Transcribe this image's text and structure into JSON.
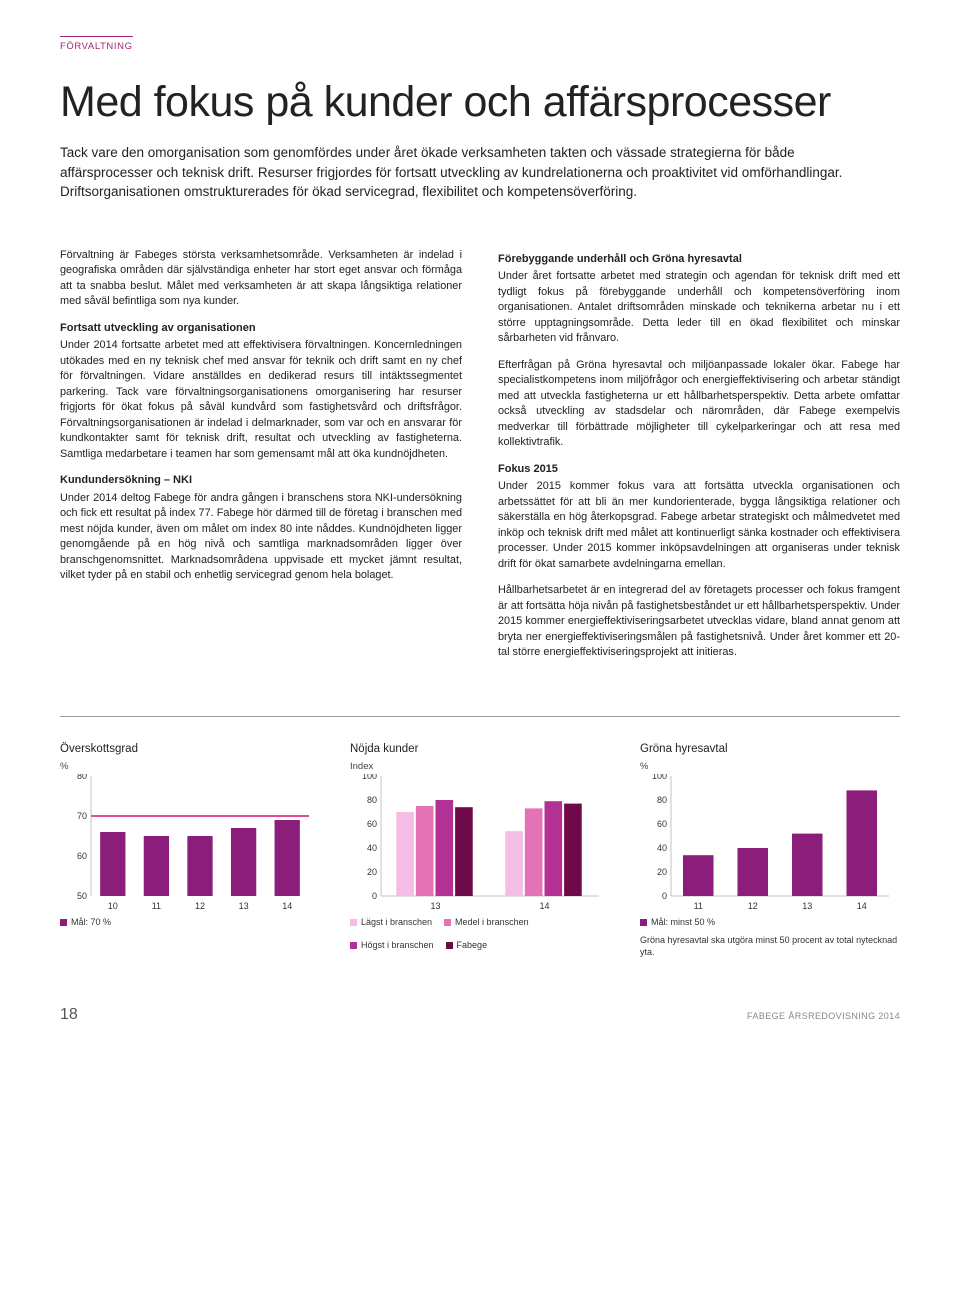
{
  "section_label": "FÖRVALTNING",
  "title": "Med fokus på kunder och affärsprocesser",
  "lead": "Tack vare den omorganisation som genomfördes under året ökade verksamheten takten och vässade strategierna för både affärsprocesser och teknisk drift. Resurser frigjordes för fortsatt utveckling av kundrelationerna och proaktivitet vid omförhandlingar. Driftsorganisationen omstrukturerades för ökad servicegrad, flexibilitet och kompetensöverföring.",
  "left": {
    "p1": "Förvaltning är Fabeges största verksamhetsområde. Verksamheten är indelad i geografiska områden där självständiga enheter har stort eget ansvar och förmåga att ta snabba beslut. Målet med verksamheten är att skapa långsiktiga relationer med såväl befintliga som nya kunder.",
    "h1": "Fortsatt utveckling av organisationen",
    "p2": "Under 2014 fortsatte arbetet med att effektivisera förvaltningen. Koncernledningen utökades med en ny teknisk chef med ansvar för teknik och drift samt en ny chef för förvaltningen. Vidare anställdes en dedikerad resurs till intäktssegmentet parkering. Tack vare förvaltningsorganisationens omorganisering har resurser frigjorts för ökat fokus på såväl kundvård som fastighetsvård och driftsfrågor. Förvaltningsorganisationen är indelad i delmarknader, som var och en ansvarar för kundkontakter samt för teknisk drift, resultat och utveckling av fastigheterna. Samtliga medarbetare i teamen har som gemensamt mål att öka kundnöjdheten.",
    "h2": "Kundundersökning – NKI",
    "p3": "Under 2014 deltog Fabege för andra gången i branschens stora NKI-undersökning och fick ett resultat på index 77. Fabege hör därmed till de företag i branschen med mest nöjda kunder, även om målet om index 80 inte nåddes. Kundnöjdheten ligger genomgående på en hög nivå och samtliga marknadsområden ligger över branschgenomsnittet. Marknadsområdena uppvisade ett mycket jämnt resultat, vilket tyder på en stabil och enhetlig servicegrad genom hela bolaget."
  },
  "right": {
    "h1": "Förebyggande underhåll och Gröna hyresavtal",
    "p1": "Under året fortsatte arbetet med strategin och agendan för teknisk drift med ett tydligt fokus på förebyggande underhåll och kompetensöverföring inom organisationen. Antalet driftsområden minskade och teknikerna arbetar nu i ett större upptagningsområde. Detta leder till en ökad flexibilitet och minskar sårbarheten vid frånvaro.",
    "p2": "Efterfrågan på Gröna hyresavtal och miljöanpassade lokaler ökar. Fabege har specialistkompetens inom miljöfrågor och energieffektivisering och arbetar ständigt med att utveckla fastigheterna ur ett hållbarhetsperspektiv. Detta arbete omfattar också utveckling av stadsdelar och närområden, där Fabege exempelvis medverkar till förbättrade möjligheter till cykelparkeringar och att resa med kollektivtrafik.",
    "h2": "Fokus 2015",
    "p3": "Under 2015 kommer fokus vara att fortsätta utveckla organisationen och arbetssättet för att bli än mer kundorienterade, bygga långsiktiga relationer och säkerställa en hög återkopsgrad. Fabege arbetar strategiskt och målmedvetet med inköp och teknisk drift med målet att kontinuerligt sänka kostnader och effektivisera processer. Under 2015 kommer inköpsavdelningen att organiseras under teknisk drift för ökat samarbete avdelningarna emellan.",
    "p4": "Hållbarhetsarbetet är en integrerad del av företagets processer och fokus framgent är att fortsätta höja nivån på fastighetsbeståndet ur ett hållbarhetsperspektiv. Under 2015 kommer energieffektiviseringsarbetet utvecklas vidare, bland annat genom att bryta ner energieffektiviseringsmålen på fastighetsnivå. Under året kommer ett 20-tal större energieffektiviseringsprojekt att initieras."
  },
  "chart1": {
    "title": "Överskottsgrad",
    "ylabel": "%",
    "ymin": 50,
    "ymax": 80,
    "ystep": 10,
    "categories": [
      "10",
      "11",
      "12",
      "13",
      "14"
    ],
    "values": [
      66,
      65,
      65,
      67,
      69
    ],
    "target": 70,
    "bar_color": "#8b1e7a",
    "target_color": "#d9509f",
    "axis_color": "#888",
    "text_color": "#333",
    "legend": "Mål: 70 %",
    "legend_swatch": "#8b1e7a"
  },
  "chart2": {
    "title": "Nöjda kunder",
    "ylabel": "Index",
    "ymin": 0,
    "ymax": 100,
    "ystep": 20,
    "categories": [
      "13",
      "14"
    ],
    "series": [
      {
        "name": "Lägst i branschen",
        "color": "#f4bde6",
        "values": [
          70,
          54
        ]
      },
      {
        "name": "Medel i branschen",
        "color": "#e473b5",
        "values": [
          75,
          73
        ]
      },
      {
        "name": "Högst i branschen",
        "color": "#b33094",
        "values": [
          80,
          79
        ]
      },
      {
        "name": "Fabege",
        "color": "#6f0a4a",
        "values": [
          74,
          77
        ]
      }
    ],
    "axis_color": "#888",
    "text_color": "#333"
  },
  "chart3": {
    "title": "Gröna hyresavtal",
    "ylabel": "%",
    "ymin": 0,
    "ymax": 100,
    "ystep": 20,
    "categories": [
      "11",
      "12",
      "13",
      "14"
    ],
    "values": [
      34,
      40,
      52,
      88
    ],
    "bar_color": "#8b1e7a",
    "axis_color": "#888",
    "text_color": "#333",
    "legend": "Mål: minst 50 %",
    "legend_swatch": "#8b1e7a",
    "note": "Gröna hyresavtal ska utgöra minst 50 procent av total nytecknad yta."
  },
  "footer": {
    "page": "18",
    "text": "FABEGE ÅRSREDOVISNING 2014"
  }
}
